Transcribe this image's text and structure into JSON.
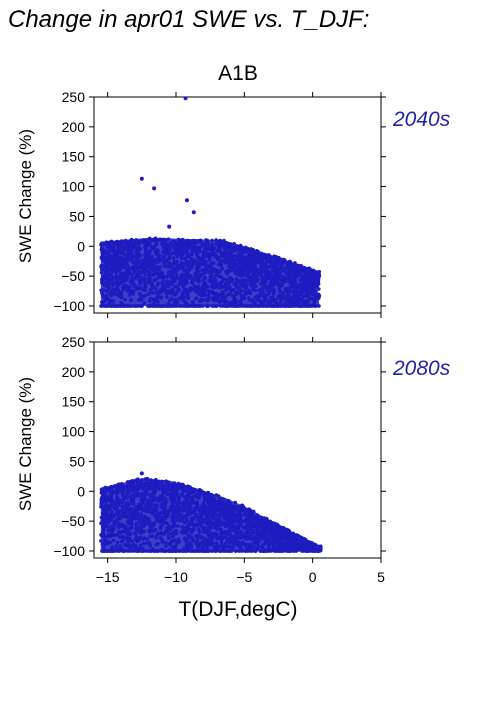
{
  "title": "Change in apr01 SWE vs. T_DJF:",
  "scenario": "A1B",
  "colors": {
    "points": "#1c1cc0",
    "period_label": "#2222aa",
    "axis": "#000000"
  },
  "chart_data": [
    {
      "type": "scatter",
      "period": "2040s",
      "xlabel": "T(DJF,degC)",
      "ylabel": "SWE Change (%)",
      "xlim": [
        -16,
        5
      ],
      "ylim": [
        -110,
        250
      ],
      "xticks": [
        -15,
        -10,
        -5,
        0,
        5
      ],
      "yticks": [
        250,
        200,
        150,
        100,
        50,
        0,
        -50,
        -100
      ],
      "grid": false,
      "point_cloud": {
        "x_range": [
          -15.5,
          0.5
        ],
        "upper_envelope": [
          [
            -15.5,
            8
          ],
          [
            -12,
            14
          ],
          [
            -8.5,
            12
          ],
          [
            -6.5,
            10
          ],
          [
            -5,
            0
          ],
          [
            -3,
            -15
          ],
          [
            -1,
            -30
          ],
          [
            0.2,
            -40
          ]
        ],
        "floor": -100
      },
      "outliers": [
        [
          -9.3,
          248
        ],
        [
          -12.5,
          113
        ],
        [
          -11.6,
          97
        ],
        [
          -9.2,
          77
        ],
        [
          -8.7,
          57
        ],
        [
          -10.5,
          33
        ],
        [
          -13.2,
          -25
        ],
        [
          -15,
          -60
        ],
        [
          -11,
          -70
        ],
        [
          -12,
          -80
        ],
        [
          -10,
          -90
        ],
        [
          0.3,
          -60
        ],
        [
          -14,
          -95
        ]
      ]
    },
    {
      "type": "scatter",
      "period": "2080s",
      "xlabel": "T(DJF,degC)",
      "ylabel": "SWE Change (%)",
      "xlim": [
        -16,
        5
      ],
      "ylim": [
        -110,
        250
      ],
      "xticks": [
        -15,
        -10,
        -5,
        0,
        5
      ],
      "yticks": [
        250,
        200,
        150,
        100,
        50,
        0,
        -50,
        -100
      ],
      "grid": false,
      "point_cloud": {
        "x_range": [
          -15.5,
          0.6
        ],
        "upper_envelope": [
          [
            -15.5,
            5
          ],
          [
            -12.5,
            22
          ],
          [
            -10.5,
            18
          ],
          [
            -8.5,
            5
          ],
          [
            -6.5,
            -10
          ],
          [
            -5,
            -25
          ],
          [
            -3,
            -50
          ],
          [
            -1,
            -75
          ],
          [
            0.4,
            -92
          ]
        ],
        "floor": -100
      },
      "outliers": [
        [
          -12.5,
          30
        ],
        [
          -15.2,
          -40
        ],
        [
          -14.5,
          -55
        ],
        [
          -13,
          -70
        ],
        [
          -15.3,
          -90
        ],
        [
          0.4,
          -100
        ],
        [
          -13.8,
          -100
        ]
      ]
    }
  ]
}
